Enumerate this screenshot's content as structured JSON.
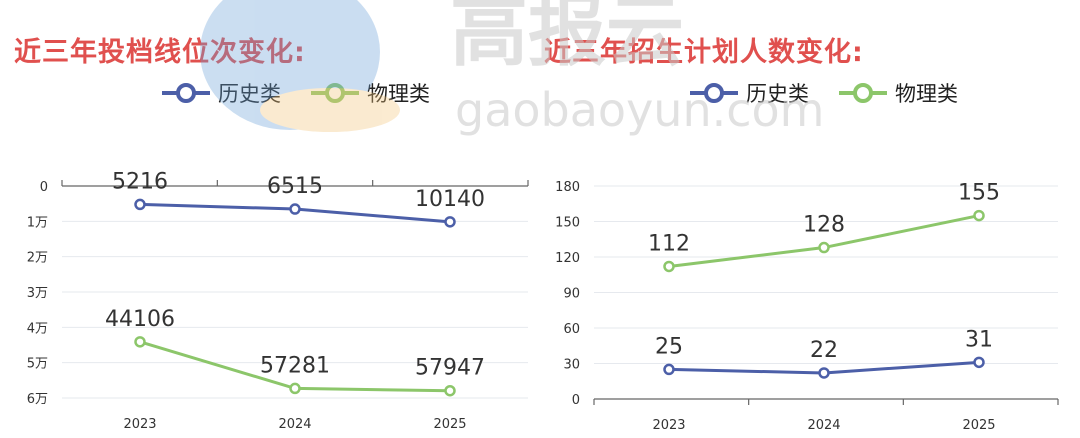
{
  "watermark": {
    "big": "高报云",
    "small": "gaobaoyun.com"
  },
  "chart_data": [
    {
      "type": "line",
      "title": "近三年投档线位次变化:",
      "categories": [
        "2023",
        "2024",
        "2025"
      ],
      "y_axis": {
        "reversed": true,
        "min": 0,
        "max": 60000,
        "ticks": [
          0,
          10000,
          20000,
          30000,
          40000,
          50000,
          60000
        ],
        "tick_labels": [
          "0",
          "1万",
          "2万",
          "3万",
          "4万",
          "5万",
          "6万"
        ]
      },
      "grid": true,
      "legend": "top",
      "series": [
        {
          "name": "历史类",
          "color": "#4c5fa8",
          "values": [
            5216,
            6515,
            10140
          ],
          "labels": [
            "5216",
            "6515",
            "10140"
          ]
        },
        {
          "name": "物理类",
          "color": "#8cc66a",
          "values": [
            44106,
            57281,
            57947
          ],
          "labels": [
            "44106",
            "57281",
            "57947"
          ]
        }
      ]
    },
    {
      "type": "line",
      "title": "近三年招生计划人数变化:",
      "categories": [
        "2023",
        "2024",
        "2025"
      ],
      "y_axis": {
        "reversed": false,
        "min": 0,
        "max": 180,
        "ticks": [
          0,
          30,
          60,
          90,
          120,
          150,
          180
        ],
        "tick_labels": [
          "0",
          "30",
          "60",
          "90",
          "120",
          "150",
          "180"
        ]
      },
      "grid": true,
      "legend": "top",
      "series": [
        {
          "name": "历史类",
          "color": "#4c5fa8",
          "values": [
            25,
            22,
            31
          ],
          "labels": [
            "25",
            "22",
            "31"
          ]
        },
        {
          "name": "物理类",
          "color": "#8cc66a",
          "values": [
            112,
            128,
            155
          ],
          "labels": [
            "112",
            "128",
            "155"
          ]
        }
      ]
    }
  ]
}
